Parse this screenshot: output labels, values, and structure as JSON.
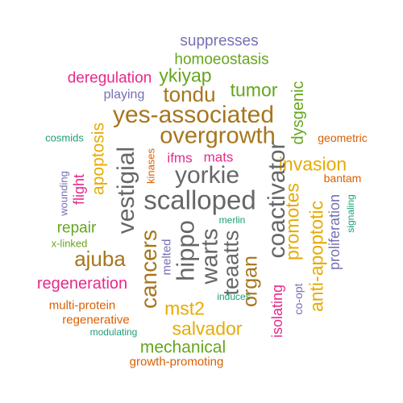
{
  "palette": {
    "purple": "#7570b3",
    "green": "#66a61e",
    "magenta": "#e7298a",
    "brown": "#a6761d",
    "gray": "#666666",
    "orange": "#d95f02",
    "teal": "#1b9e77",
    "gold": "#e6ab02"
  },
  "words": [
    {
      "text": "suppresses",
      "color": "purple",
      "vertical": false
    },
    {
      "text": "homoeostasis",
      "color": "green",
      "vertical": false
    },
    {
      "text": "deregulation",
      "color": "magenta",
      "vertical": false
    },
    {
      "text": "ykiyap",
      "color": "green",
      "vertical": false
    },
    {
      "text": "tondu",
      "color": "brown",
      "vertical": false
    },
    {
      "text": "tumor",
      "color": "green",
      "vertical": false
    },
    {
      "text": "playing",
      "color": "purple",
      "vertical": false
    },
    {
      "text": "dysgenic",
      "color": "green",
      "vertical": true
    },
    {
      "text": "yes-associated",
      "color": "brown",
      "vertical": false
    },
    {
      "text": "overgrowth",
      "color": "brown",
      "vertical": false
    },
    {
      "text": "cosmids",
      "color": "teal",
      "vertical": false
    },
    {
      "text": "apoptosis",
      "color": "gold",
      "vertical": true
    },
    {
      "text": "vestigial",
      "color": "gray",
      "vertical": true
    },
    {
      "text": "kinases",
      "color": "orange",
      "vertical": true
    },
    {
      "text": "ifms",
      "color": "magenta",
      "vertical": false
    },
    {
      "text": "mats",
      "color": "magenta",
      "vertical": false
    },
    {
      "text": "geometric",
      "color": "orange",
      "vertical": false
    },
    {
      "text": "invasion",
      "color": "gold",
      "vertical": false
    },
    {
      "text": "yorkie",
      "color": "gray",
      "vertical": false
    },
    {
      "text": "coactivator",
      "color": "gray",
      "vertical": true
    },
    {
      "text": "bantam",
      "color": "orange",
      "vertical": false
    },
    {
      "text": "wounding",
      "color": "purple",
      "vertical": true
    },
    {
      "text": "flight",
      "color": "magenta",
      "vertical": true
    },
    {
      "text": "scalloped",
      "color": "gray",
      "vertical": false
    },
    {
      "text": "promotes",
      "color": "gold",
      "vertical": true
    },
    {
      "text": "proliferation",
      "color": "purple",
      "vertical": true
    },
    {
      "text": "signaling",
      "color": "teal",
      "vertical": true
    },
    {
      "text": "repair",
      "color": "green",
      "vertical": false
    },
    {
      "text": "merlin",
      "color": "teal",
      "vertical": false
    },
    {
      "text": "anti-apoptotic",
      "color": "gold",
      "vertical": true
    },
    {
      "text": "x-linked",
      "color": "green",
      "vertical": false
    },
    {
      "text": "hippo",
      "color": "gray",
      "vertical": true
    },
    {
      "text": "warts",
      "color": "gray",
      "vertical": true
    },
    {
      "text": "teaatts",
      "color": "gray",
      "vertical": true
    },
    {
      "text": "ajuba",
      "color": "brown",
      "vertical": false
    },
    {
      "text": "cancers",
      "color": "brown",
      "vertical": true
    },
    {
      "text": "melted",
      "color": "purple",
      "vertical": true
    },
    {
      "text": "organ",
      "color": "brown",
      "vertical": true
    },
    {
      "text": "co-opt",
      "color": "purple",
      "vertical": true
    },
    {
      "text": "regeneration",
      "color": "magenta",
      "vertical": false
    },
    {
      "text": "induces",
      "color": "teal",
      "vertical": false
    },
    {
      "text": "isolating",
      "color": "magenta",
      "vertical": true
    },
    {
      "text": "multi-protein",
      "color": "orange",
      "vertical": false
    },
    {
      "text": "mst2",
      "color": "gold",
      "vertical": false
    },
    {
      "text": "regenerative",
      "color": "orange",
      "vertical": false
    },
    {
      "text": "salvador",
      "color": "gold",
      "vertical": false
    },
    {
      "text": "modulating",
      "color": "teal",
      "vertical": false
    },
    {
      "text": "mechanical",
      "color": "green",
      "vertical": false
    },
    {
      "text": "growth-promoting",
      "color": "orange",
      "vertical": false
    }
  ]
}
